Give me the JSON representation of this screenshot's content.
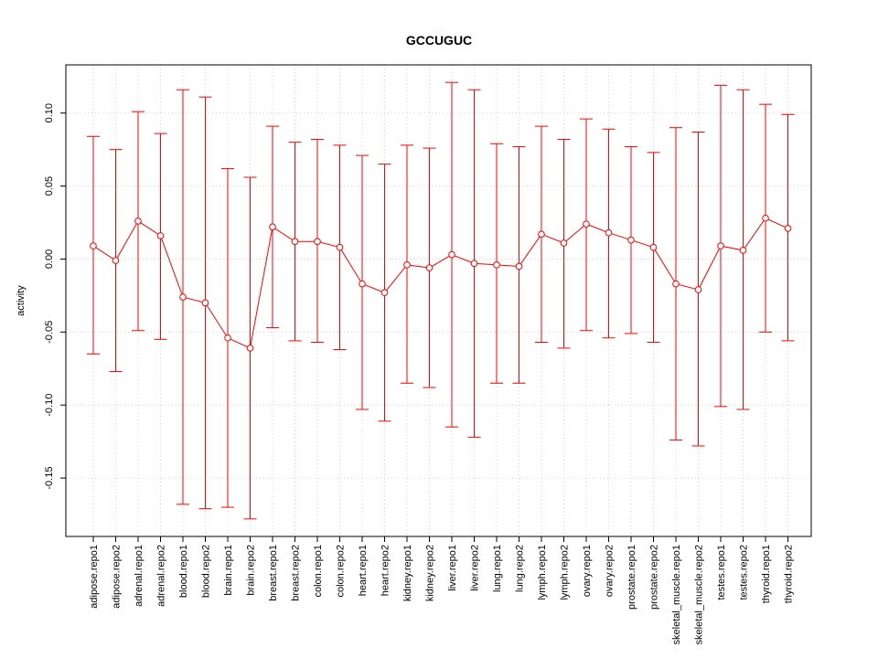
{
  "chart_data": {
    "type": "line",
    "title": "GCCUGUC",
    "xlabel": "",
    "ylabel": "activity",
    "ylim": [
      -0.19,
      0.133
    ],
    "yticks": [
      -0.15,
      -0.1,
      -0.05,
      0.0,
      0.05,
      0.1
    ],
    "ytick_labels": [
      "-0.15",
      "-0.10",
      "-0.05",
      "0.00",
      "0.05",
      "0.10"
    ],
    "grid": true,
    "color": "#ff0000",
    "categories": [
      "adipose.repo1",
      "adipose.repo2",
      "adrenal.repo1",
      "adrenal.repo2",
      "blood.repo1",
      "blood.repo2",
      "brain.repo1",
      "brain.repo2",
      "breast.repo1",
      "breast.repo2",
      "colon.repo1",
      "colon.repo2",
      "heart.repo1",
      "heart.repo2",
      "kidney.repo1",
      "kidney.repo2",
      "liver.repo1",
      "liver.repo2",
      "lung.repo1",
      "lung.repo2",
      "lymph.repo1",
      "lymph.repo2",
      "ovary.repo1",
      "ovary.repo2",
      "prostate.repo1",
      "prostate.repo2",
      "skeletal_muscle.repo1",
      "skeletal_muscle.repo2",
      "testes.repo1",
      "testes.repo2",
      "thyroid.repo1",
      "thyroid.repo2"
    ],
    "values": [
      0.009,
      -0.001,
      0.026,
      0.016,
      -0.026,
      -0.03,
      -0.054,
      -0.061,
      0.022,
      0.012,
      0.012,
      0.008,
      -0.017,
      -0.023,
      -0.004,
      -0.006,
      0.003,
      -0.003,
      -0.004,
      -0.005,
      0.017,
      0.011,
      0.024,
      0.018,
      0.013,
      0.008,
      -0.017,
      -0.021,
      0.009,
      0.006,
      0.028,
      0.021
    ],
    "upper": [
      0.084,
      0.075,
      0.101,
      0.086,
      0.116,
      0.111,
      0.062,
      0.056,
      0.091,
      0.08,
      0.082,
      0.078,
      0.071,
      0.065,
      0.078,
      0.076,
      0.121,
      0.116,
      0.079,
      0.077,
      0.091,
      0.082,
      0.096,
      0.089,
      0.077,
      0.073,
      0.09,
      0.087,
      0.119,
      0.116,
      0.106,
      0.099
    ],
    "lower": [
      -0.065,
      -0.077,
      -0.049,
      -0.055,
      -0.168,
      -0.171,
      -0.17,
      -0.178,
      -0.047,
      -0.056,
      -0.057,
      -0.062,
      -0.103,
      -0.111,
      -0.085,
      -0.088,
      -0.115,
      -0.122,
      -0.085,
      -0.085,
      -0.057,
      -0.061,
      -0.049,
      -0.054,
      -0.051,
      -0.057,
      -0.124,
      -0.128,
      -0.101,
      -0.103,
      -0.05,
      -0.056
    ]
  }
}
